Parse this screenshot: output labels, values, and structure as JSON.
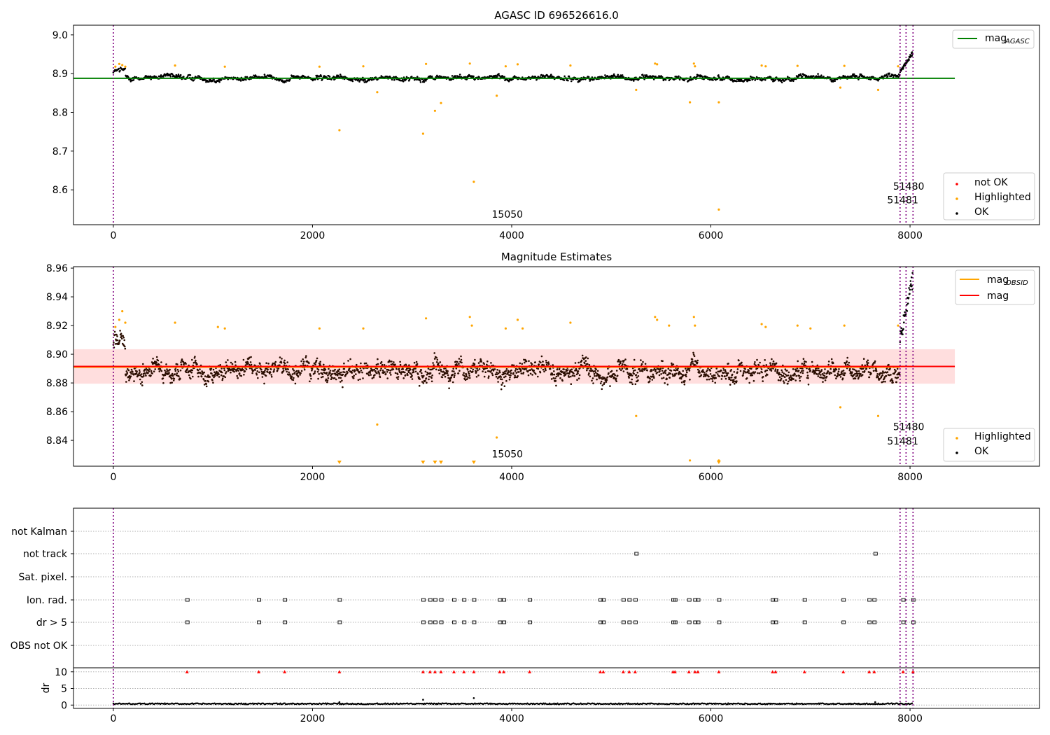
{
  "chart_data": [
    {
      "type": "scatter",
      "title": "AGASC ID 696526616.0",
      "xlim": [
        -400,
        9300
      ],
      "ylim": [
        8.51,
        9.025
      ],
      "xticks": [
        0,
        2000,
        4000,
        6000,
        8000
      ],
      "yticks": [
        8.6,
        8.7,
        8.8,
        8.9,
        9.0
      ],
      "ytick_labels": [
        "8.6",
        "8.7",
        "8.8",
        "8.9",
        "9.0"
      ],
      "reference_line": {
        "label": "AGASC",
        "value": 8.888,
        "x_range": [
          -400,
          8450
        ],
        "color": "#008000"
      },
      "legend_lines": [
        {
          "name": "mag",
          "subscript": "AGASC",
          "color": "#008000"
        }
      ],
      "legend_points": [
        {
          "name": "not OK",
          "color": "#ff0000"
        },
        {
          "name": "Highlighted",
          "color": "#ffa500"
        },
        {
          "name": "OK",
          "color": "#000000"
        }
      ],
      "obsid_lines": [
        0,
        7900,
        7960,
        8030
      ],
      "annotations": [
        {
          "text": "15050",
          "x": 3800,
          "y": 8.528
        },
        {
          "text": "51480",
          "x": 7830,
          "y": 8.6
        },
        {
          "text": "51481",
          "x": 7770,
          "y": 8.565
        }
      ],
      "highlighted_points": [
        [
          2270,
          8.754
        ],
        [
          3110,
          8.745
        ],
        [
          3230,
          8.804
        ],
        [
          3290,
          8.824
        ],
        [
          2650,
          8.852
        ],
        [
          3620,
          8.621
        ],
        [
          3850,
          8.843
        ],
        [
          5250,
          8.858
        ],
        [
          5790,
          8.826
        ],
        [
          6080,
          8.826
        ],
        [
          6080,
          8.549
        ],
        [
          7300,
          8.864
        ],
        [
          7680,
          8.858
        ],
        [
          20,
          8.918
        ],
        [
          60,
          8.925
        ],
        [
          90,
          8.922
        ],
        [
          120,
          8.918
        ],
        [
          620,
          8.921
        ],
        [
          1120,
          8.918
        ],
        [
          2070,
          8.918
        ],
        [
          2510,
          8.919
        ],
        [
          3140,
          8.925
        ],
        [
          3580,
          8.926
        ],
        [
          3940,
          8.919
        ],
        [
          4060,
          8.924
        ],
        [
          4590,
          8.921
        ],
        [
          5440,
          8.926
        ],
        [
          5460,
          8.924
        ],
        [
          5830,
          8.926
        ],
        [
          5840,
          8.919
        ],
        [
          6510,
          8.921
        ],
        [
          6550,
          8.919
        ],
        [
          6870,
          8.92
        ],
        [
          7340,
          8.92
        ],
        [
          7880,
          8.919
        ]
      ],
      "ok_band": {
        "range": [
          7900,
          8035
        ],
        "values": [
          8.91,
          8.925,
          8.94,
          8.96
        ]
      }
    },
    {
      "type": "scatter",
      "title": "Magnitude Estimates",
      "xlim": [
        -400,
        9300
      ],
      "ylim": [
        8.822,
        8.961
      ],
      "xticks": [
        0,
        2000,
        4000,
        6000,
        8000
      ],
      "yticks": [
        8.84,
        8.86,
        8.88,
        8.9,
        8.92,
        8.94,
        8.96
      ],
      "ytick_labels": [
        "8.84",
        "8.86",
        "8.88",
        "8.90",
        "8.92",
        "8.94",
        "8.96"
      ],
      "mag_line": {
        "value": 8.8915,
        "band": [
          8.8795,
          8.9035
        ],
        "x_range": [
          -400,
          8450
        ],
        "color": "#ff0000"
      },
      "obsid_line": {
        "value": 8.891,
        "x_range": [
          -400,
          7900
        ],
        "color": "#ffa500"
      },
      "legend_lines": [
        {
          "name": "mag",
          "subscript": "OBSID",
          "color": "#ffa500"
        },
        {
          "name": "mag",
          "subscript": "",
          "color": "#ff0000"
        }
      ],
      "legend_points": [
        {
          "name": "Highlighted",
          "color": "#ffa500"
        },
        {
          "name": "OK",
          "color": "#000000"
        }
      ],
      "obsid_lines": [
        0,
        7900,
        7960,
        8030
      ],
      "annotations": [
        {
          "text": "15050",
          "x": 3800,
          "y": 8.828
        },
        {
          "text": "51480",
          "x": 7830,
          "y": 8.847
        },
        {
          "text": "51481",
          "x": 7770,
          "y": 8.837
        }
      ],
      "below_range_markers": [
        2270,
        3110,
        3230,
        3290,
        3620,
        6080
      ],
      "highlighted_points": [
        [
          2650,
          8.851
        ],
        [
          3850,
          8.842
        ],
        [
          5250,
          8.857
        ],
        [
          5790,
          8.826
        ],
        [
          6080,
          8.826
        ],
        [
          7300,
          8.863
        ],
        [
          7680,
          8.857
        ],
        [
          20,
          8.919
        ],
        [
          60,
          8.924
        ],
        [
          90,
          8.93
        ],
        [
          120,
          8.922
        ],
        [
          620,
          8.922
        ],
        [
          1050,
          8.919
        ],
        [
          1120,
          8.918
        ],
        [
          2070,
          8.918
        ],
        [
          2510,
          8.918
        ],
        [
          3140,
          8.925
        ],
        [
          3580,
          8.926
        ],
        [
          3600,
          8.92
        ],
        [
          3940,
          8.918
        ],
        [
          4060,
          8.924
        ],
        [
          4110,
          8.918
        ],
        [
          4590,
          8.922
        ],
        [
          5440,
          8.926
        ],
        [
          5460,
          8.924
        ],
        [
          5830,
          8.926
        ],
        [
          5840,
          8.92
        ],
        [
          5580,
          8.92
        ],
        [
          6510,
          8.921
        ],
        [
          6550,
          8.919
        ],
        [
          6870,
          8.92
        ],
        [
          7000,
          8.918
        ],
        [
          7340,
          8.92
        ],
        [
          7880,
          8.92
        ]
      ],
      "ok_band": {
        "range": [
          7900,
          8035
        ],
        "values": [
          8.915,
          8.93,
          8.945,
          8.958
        ]
      }
    },
    {
      "type": "scatter",
      "xlim": [
        -400,
        9300
      ],
      "flag_rows": [
        "not Kalman",
        "not track",
        "Sat. pixel.",
        "Ion. rad.",
        "dr > 5",
        "OBS not OK"
      ],
      "flag_events": {
        "not track": [
          5250,
          7650
        ],
        "Ion. rad.": [
          740,
          1460,
          1720,
          2270,
          3110,
          3180,
          3230,
          3290,
          3420,
          3520,
          3620,
          3880,
          3920,
          4180,
          4890,
          4920,
          5120,
          5180,
          5240,
          5620,
          5640,
          5780,
          5840,
          5870,
          6080,
          6620,
          6650,
          6940,
          7330,
          7590,
          7640,
          7930,
          8030
        ],
        "dr > 5": [
          740,
          1460,
          1720,
          2270,
          3110,
          3180,
          3230,
          3290,
          3420,
          3520,
          3620,
          3880,
          3920,
          4180,
          4890,
          4920,
          5120,
          5180,
          5240,
          5620,
          5640,
          5780,
          5840,
          5870,
          6080,
          6620,
          6650,
          6940,
          7330,
          7590,
          7640,
          7930,
          8030
        ]
      },
      "dr_axis": {
        "ylabel": "dr",
        "ylim": [
          -1,
          11
        ],
        "yticks": [
          0,
          5,
          10
        ],
        "ytick_labels": [
          "0",
          "5",
          "10"
        ],
        "clip_value": 10
      },
      "dr_outliers": [
        [
          2270,
          0.9
        ],
        [
          3110,
          1.6
        ],
        [
          3620,
          2.1
        ],
        [
          7650,
          0.9
        ]
      ],
      "obsid_lines": [
        0,
        7900,
        7960,
        8030
      ],
      "xticks": [
        0,
        2000,
        4000,
        6000,
        8000
      ]
    }
  ]
}
